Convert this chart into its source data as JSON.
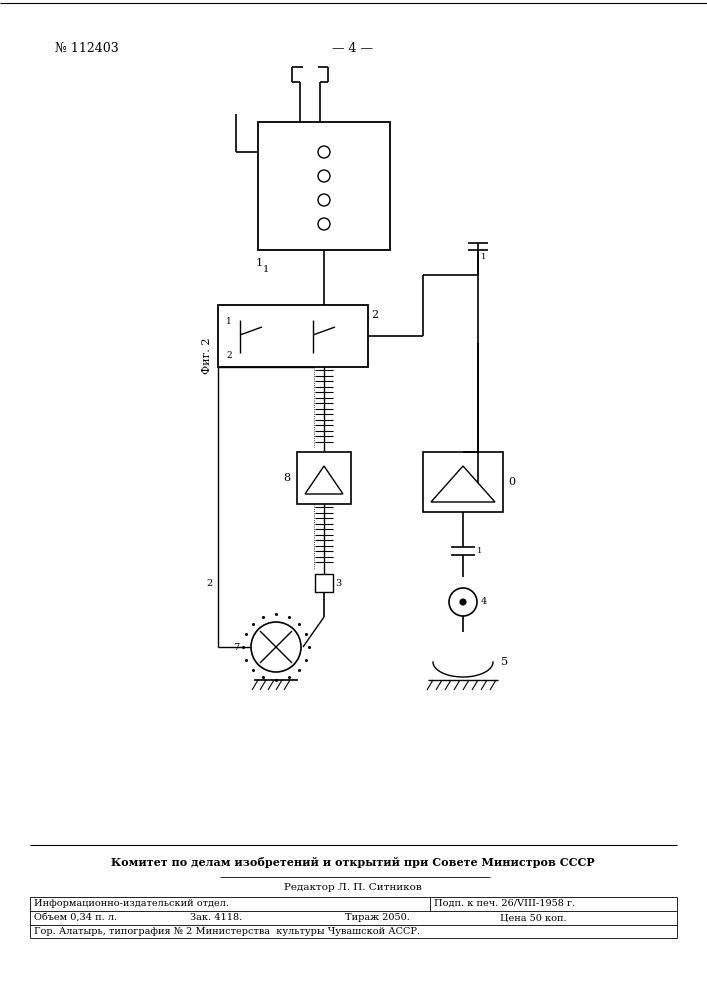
{
  "bg_color": "#ffffff",
  "page_number": "— 4 —",
  "doc_number": "№ 112403",
  "fig_label": "Фиг. 2",
  "bottom_text1": "Комитет по делам изобретений и открытий при Совете Министров СССР",
  "bottom_text2": "Редактор Л. П. Ситников",
  "table_row1_col1": "Информационно-издательский отдел.",
  "table_row1_col2": "Подп. к печ. 26/VIII-1958 г.",
  "table_row2_col1": "Объем 0,34 п. л.",
  "table_row2_col2": "Зак. 4118.",
  "table_row2_col3": "Тираж 2050.",
  "table_row2_col4": "Цена 50 коп.",
  "table_row3": "Гор. Алатырь, типография № 2 Министерства  культуры Чувашской АССР.",
  "line_color": "#000000",
  "line_width": 1.0
}
